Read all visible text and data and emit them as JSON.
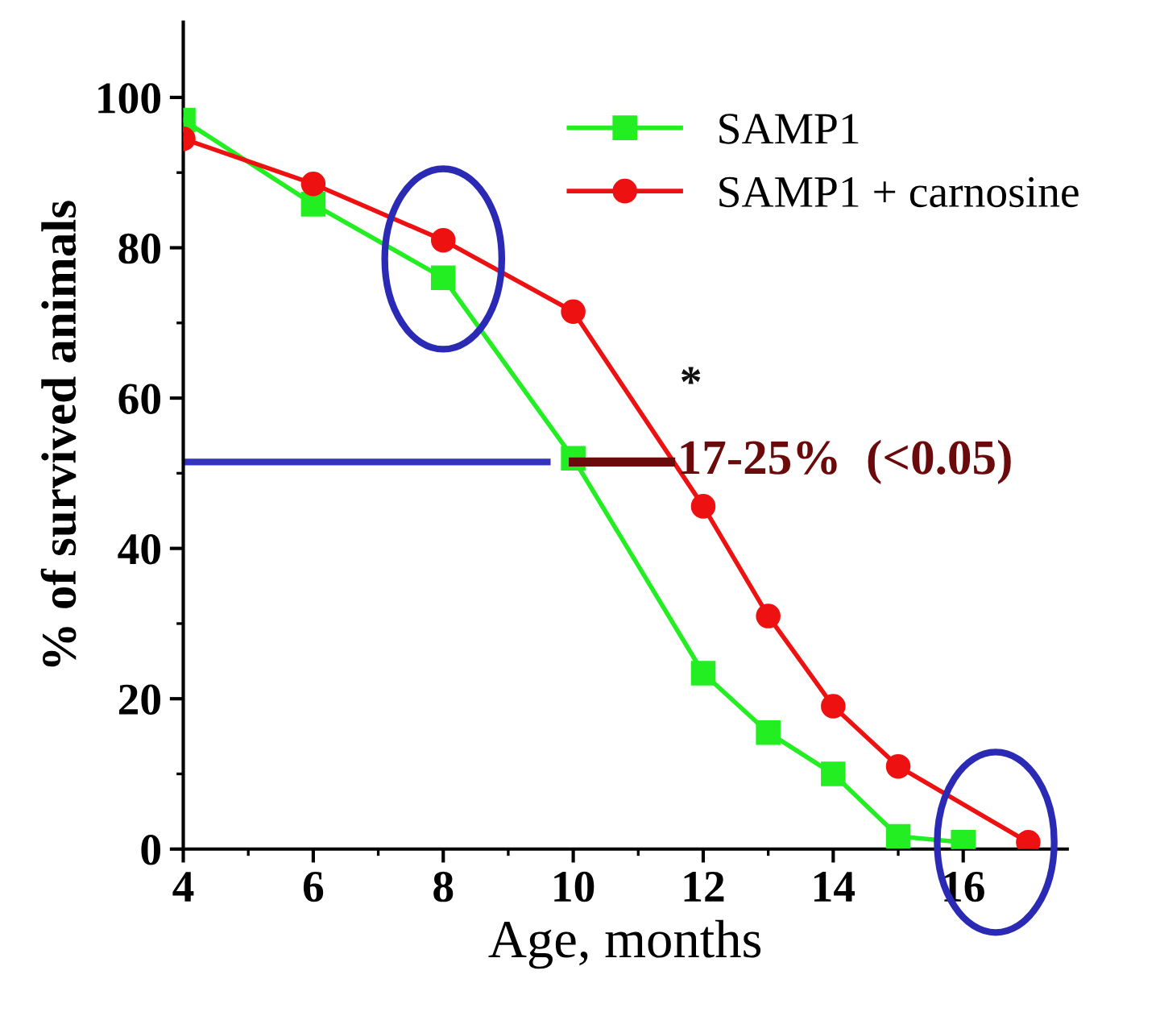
{
  "chart_data": {
    "type": "line",
    "xlabel": "Age, months",
    "ylabel": "% of survived animals",
    "xlim": [
      4,
      17.6
    ],
    "xticks": [
      4,
      6,
      8,
      10,
      12,
      14,
      16
    ],
    "ylim": [
      0,
      110
    ],
    "yticks": [
      0,
      20,
      40,
      60,
      80,
      100
    ],
    "series": [
      {
        "name": "SAMP1",
        "color": "#22ee22",
        "marker": "square",
        "x": [
          4,
          6,
          8,
          10,
          12,
          13,
          14,
          15,
          16
        ],
        "values": [
          97,
          85.8,
          76,
          52,
          23.4,
          15.5,
          10,
          1.7,
          0.9
        ]
      },
      {
        "name": "SAMP1 + carnosine",
        "color": "#ee1111",
        "marker": "circle",
        "x": [
          4,
          6,
          8,
          10,
          12,
          13,
          14,
          15,
          17
        ],
        "values": [
          94.5,
          88.5,
          81,
          71.5,
          45.6,
          31,
          19,
          11,
          0.9
        ]
      }
    ],
    "ref_lines": [
      {
        "axis": "y",
        "value": 51.5,
        "color": "#3333bb"
      }
    ],
    "annotations": [
      "*",
      {
        "text": "17-25%  (<0.05)",
        "x": 11.5,
        "y": 51.5
      }
    ],
    "legend": "top right",
    "grid": false,
    "line_style": "solid"
  }
}
